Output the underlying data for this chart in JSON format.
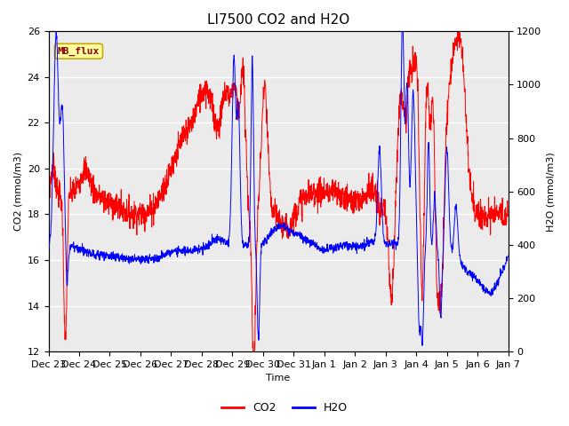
{
  "title": "LI7500 CO2 and H2O",
  "xlabel": "Time",
  "ylabel_left": "CO2 (mmol/m3)",
  "ylabel_right": "H2O (mmol/m3)",
  "annotation_text": "MB_flux",
  "co2_color": "#FF0000",
  "h2o_color": "#0000FF",
  "background_color": "#FFFFFF",
  "plot_bg_color": "#EBEBEB",
  "grid_color": "#FFFFFF",
  "ylim_left": [
    12,
    26
  ],
  "ylim_right": [
    0,
    1200
  ],
  "yticks_left": [
    12,
    14,
    16,
    18,
    20,
    22,
    24,
    26
  ],
  "yticks_right": [
    0,
    200,
    400,
    600,
    800,
    1000,
    1200
  ],
  "xtick_labels": [
    "Dec 23",
    "Dec 24",
    "Dec 25",
    "Dec 26",
    "Dec 27",
    "Dec 28",
    "Dec 29",
    "Dec 30",
    "Dec 31",
    "Jan 1",
    "Jan 2",
    "Jan 3",
    "Jan 4",
    "Jan 5",
    "Jan 6",
    "Jan 7"
  ],
  "n_points": 2000,
  "seed": 7,
  "legend_co2": "CO2",
  "legend_h2o": "H2O",
  "title_fontsize": 11,
  "axis_fontsize": 8,
  "tick_fontsize": 8,
  "legend_fontsize": 9,
  "figsize": [
    6.4,
    4.8
  ],
  "dpi": 100
}
